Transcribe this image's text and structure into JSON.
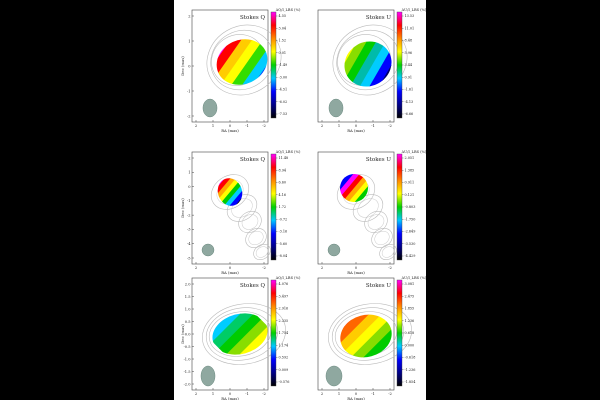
{
  "panels": [
    {
      "stokes": "Stokes Q",
      "cb_title": "ΔQ/I_LBS (%)",
      "cb_ticks": [
        "4.55",
        "3.04",
        "1.52",
        "0.01",
        "-1.49",
        "-3.00",
        "-4.51",
        "-6.02",
        "-7.53"
      ],
      "cb_colors": [
        "#ff00ff",
        "#ff0000",
        "#ff8800",
        "#ffff00",
        "#00d000",
        "#00c8ff",
        "#0000ff",
        "#000088",
        "#000000"
      ],
      "y_label": "Dec (mas)",
      "y_ticks": [
        "2",
        "1",
        "0",
        "-1",
        "-2"
      ],
      "x_label": "RA (mas)",
      "x_ticks": [
        "2",
        "1",
        "0",
        "-1",
        "-2"
      ],
      "map_colors": [
        "#ff00ff",
        "#ff0000",
        "#ffcc00",
        "#ffff00",
        "#33dd00",
        "#00ccff",
        "#0044ff"
      ]
    },
    {
      "stokes": "Stokes U",
      "cb_title": "ΔU/I_LBS (%)",
      "cb_ticks": [
        "13.53",
        "11.01",
        "8.48",
        "5.96",
        "3.44",
        "0.91",
        "-1.61",
        "-4.13",
        "-6.66"
      ],
      "cb_colors": [
        "#ff00ff",
        "#ff0000",
        "#ff8800",
        "#ffff00",
        "#00d000",
        "#00c8ff",
        "#0000ff",
        "#000088",
        "#000000"
      ],
      "y_label": "",
      "y_ticks": [],
      "x_label": "RA (mas)",
      "x_ticks": [
        "2",
        "1",
        "0",
        "-1",
        "-2"
      ],
      "map_colors": [
        "#ffff00",
        "#88dd00",
        "#00cc00",
        "#00bbaa",
        "#00ccff",
        "#0000ff",
        "#000066"
      ]
    },
    {
      "stokes": "Stokes Q",
      "cb_title": "ΔQ/I_LBS (%)",
      "cb_ticks": [
        "11.48",
        "8.94",
        "6.60",
        "4.16",
        "1.72",
        "-0.72",
        "-3.16",
        "-5.60",
        "-8.04"
      ],
      "cb_colors": [
        "#ff00ff",
        "#ff0000",
        "#ff8800",
        "#ffff00",
        "#00d000",
        "#00c8ff",
        "#0000ff",
        "#000088",
        "#000000"
      ],
      "y_label": "Dec (mas)",
      "y_ticks": [
        "2",
        "1",
        "0",
        "-1",
        "-2",
        "-3",
        "-4",
        "-5"
      ],
      "x_label": "RA (mas)",
      "x_ticks": [
        "2",
        "0",
        "-2"
      ],
      "map_colors": [
        "#ff00ff",
        "#ff0000",
        "#ffaa00",
        "#ffff00",
        "#00cc00",
        "#00ccff",
        "#0000ff",
        "#000000"
      ]
    },
    {
      "stokes": "Stokes U",
      "cb_title": "ΔU/I_LBS (%)",
      "cb_ticks": [
        "2.051",
        "1.385",
        "0.911",
        "0.121",
        "-0.803",
        "-1.750",
        "-2.649",
        "-3.530",
        "-4.429"
      ],
      "cb_colors": [
        "#ff00ff",
        "#ff0000",
        "#ff8800",
        "#ffff00",
        "#00d000",
        "#00c8ff",
        "#0000ff",
        "#000088",
        "#000000"
      ],
      "y_label": "",
      "y_ticks": [],
      "x_label": "RA (mas)",
      "x_ticks": [
        "2",
        "0",
        "-2"
      ],
      "map_colors": [
        "#000044",
        "#0000ff",
        "#ff00ff",
        "#ff0000",
        "#ffaa00",
        "#ffff00",
        "#00cc00",
        "#00ccff"
      ]
    },
    {
      "stokes": "Stokes Q",
      "cb_title": "ΔQ/I_LBS (%)",
      "cb_ticks": [
        "4.076",
        "3.497",
        "2.916",
        "2.335",
        "1.754",
        "1.174",
        "0.592",
        "0.009",
        "-0.576"
      ],
      "cb_colors": [
        "#ff00ff",
        "#ff0000",
        "#ff8800",
        "#ffff00",
        "#00d000",
        "#00c8ff",
        "#0000ff",
        "#000088",
        "#000000"
      ],
      "y_label": "Dec (mas)",
      "y_ticks": [
        "2.0",
        "1.5",
        "1.0",
        "0.5",
        "0.0",
        "-0.5",
        "-1.0",
        "-1.5",
        "-2.0"
      ],
      "x_label": "RA (mas)",
      "x_ticks": [
        "2",
        "1",
        "0",
        "-1",
        "-2"
      ],
      "map_colors": [
        "#0000ff",
        "#00ccff",
        "#00cc66",
        "#00cc00",
        "#88dd00",
        "#ffff00",
        "#ffcc00"
      ]
    },
    {
      "stokes": "Stokes U",
      "cb_title": "ΔU/I_LBS (%)",
      "cb_ticks": [
        "3.081",
        "2.475",
        "1.855",
        "1.236",
        "0.618",
        "0.000",
        "-0.618",
        "-1.236",
        "-1.854"
      ],
      "cb_colors": [
        "#ff00ff",
        "#ff0000",
        "#ff8800",
        "#ffff00",
        "#00d000",
        "#00c8ff",
        "#0000ff",
        "#000088",
        "#000000"
      ],
      "y_label": "",
      "y_ticks": [],
      "x_label": "RA (mas)",
      "x_ticks": [
        "2",
        "1",
        "0",
        "-1",
        "-2"
      ],
      "map_colors": [
        "#ff0000",
        "#ff6600",
        "#ffcc00",
        "#ffff00",
        "#88dd00",
        "#00cc00",
        "#00ccff"
      ]
    }
  ]
}
